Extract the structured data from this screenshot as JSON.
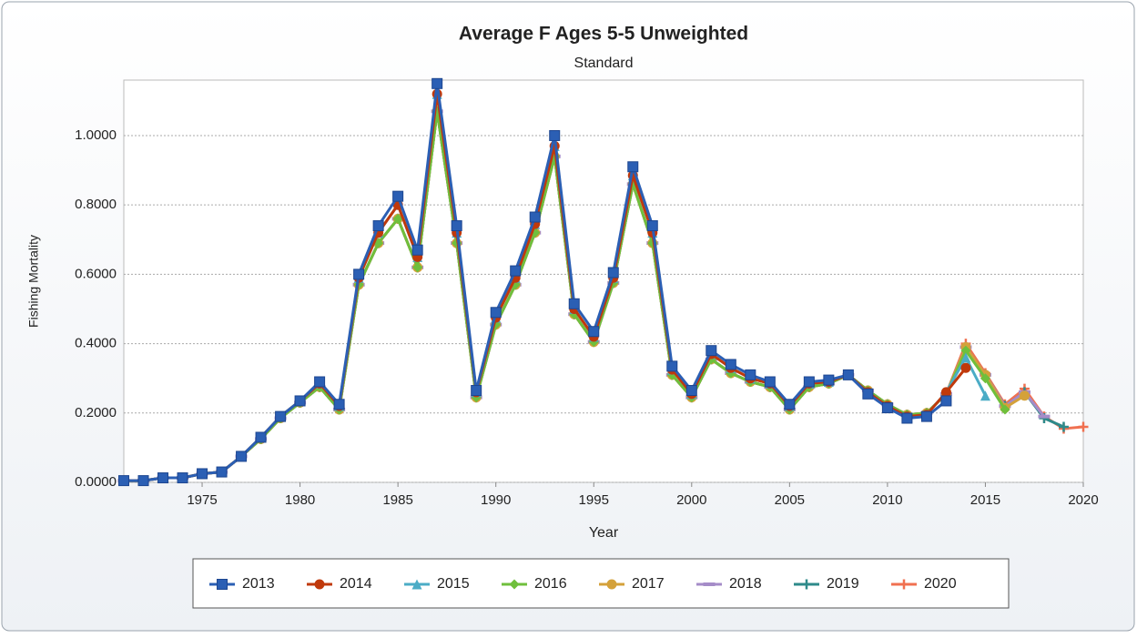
{
  "chart_data": {
    "type": "line",
    "title": "Average F Ages 5-5 Unweighted",
    "subtitle": "Standard",
    "x_label": "Year",
    "y_label": "Fishing Mortality",
    "x": [
      1971,
      1972,
      1973,
      1974,
      1975,
      1976,
      1977,
      1978,
      1979,
      1980,
      1981,
      1982,
      1983,
      1984,
      1985,
      1986,
      1987,
      1988,
      1989,
      1990,
      1991,
      1992,
      1993,
      1994,
      1995,
      1996,
      1997,
      1998,
      1999,
      2000,
      2001,
      2002,
      2003,
      2004,
      2005,
      2006,
      2007,
      2008,
      2009,
      2010,
      2011,
      2012,
      2013,
      2014,
      2015,
      2016,
      2017,
      2018,
      2019,
      2020
    ],
    "xlim": [
      1971,
      2020
    ],
    "xticks": [
      1975,
      1980,
      1985,
      1990,
      1995,
      2000,
      2005,
      2010,
      2015,
      2020
    ],
    "ylim": [
      0,
      1.16
    ],
    "yticks": [
      {
        "value": 0,
        "label": "0.0000"
      },
      {
        "value": 0.2,
        "label": "0.2000"
      },
      {
        "value": 0.4,
        "label": "0.4000"
      },
      {
        "value": 0.6,
        "label": "0.6000"
      },
      {
        "value": 0.8,
        "label": "0.8000"
      },
      {
        "value": 1.0,
        "label": "1.0000"
      }
    ],
    "grid": true,
    "legend": "bottom",
    "series": [
      {
        "name": "2013",
        "color": "#2b5fb4",
        "marker": "square",
        "values": [
          0.005,
          0.005,
          0.013,
          0.013,
          0.025,
          0.03,
          0.075,
          0.13,
          0.19,
          0.235,
          0.29,
          0.225,
          0.6,
          0.74,
          0.825,
          0.67,
          1.15,
          0.74,
          0.265,
          0.49,
          0.61,
          0.765,
          1.0,
          0.515,
          0.435,
          0.605,
          0.91,
          0.74,
          0.335,
          0.265,
          0.38,
          0.34,
          0.31,
          0.29,
          0.225,
          0.29,
          0.295,
          0.31,
          0.255,
          0.215,
          0.185,
          0.19,
          0.235,
          null,
          null,
          null,
          null,
          null,
          null,
          null
        ]
      },
      {
        "name": "2014",
        "color": "#c0390b",
        "marker": "circle",
        "values": [
          0.005,
          0.005,
          0.013,
          0.013,
          0.025,
          0.03,
          0.075,
          0.13,
          0.19,
          0.235,
          0.285,
          0.22,
          0.59,
          0.72,
          0.8,
          0.65,
          1.12,
          0.72,
          0.26,
          0.475,
          0.59,
          0.745,
          0.97,
          0.5,
          0.42,
          0.59,
          0.885,
          0.72,
          0.325,
          0.255,
          0.37,
          0.33,
          0.3,
          0.285,
          0.22,
          0.285,
          0.29,
          0.31,
          0.26,
          0.22,
          0.19,
          0.195,
          0.26,
          0.33,
          null,
          null,
          null,
          null,
          null,
          null
        ]
      },
      {
        "name": "2015",
        "color": "#4bacc6",
        "marker": "triangle",
        "values": [
          0.005,
          0.005,
          0.013,
          0.013,
          0.025,
          0.03,
          0.075,
          0.13,
          0.19,
          0.235,
          0.285,
          0.22,
          0.59,
          0.72,
          0.8,
          0.65,
          1.12,
          0.72,
          0.26,
          0.475,
          0.59,
          0.745,
          0.97,
          0.5,
          0.42,
          0.59,
          0.885,
          0.72,
          0.325,
          0.255,
          0.37,
          0.33,
          0.3,
          0.285,
          0.22,
          0.285,
          0.29,
          0.31,
          0.26,
          0.22,
          0.19,
          0.195,
          0.26,
          0.36,
          0.25,
          null,
          null,
          null,
          null,
          null
        ]
      },
      {
        "name": "2016",
        "color": "#6fbf3c",
        "marker": "diamond",
        "values": [
          0.005,
          0.005,
          0.013,
          0.013,
          0.025,
          0.03,
          0.075,
          0.125,
          0.185,
          0.23,
          0.275,
          0.21,
          0.57,
          0.69,
          0.76,
          0.62,
          1.07,
          0.69,
          0.245,
          0.455,
          0.57,
          0.72,
          0.94,
          0.485,
          0.405,
          0.575,
          0.86,
          0.69,
          0.31,
          0.245,
          0.355,
          0.315,
          0.29,
          0.275,
          0.21,
          0.275,
          0.285,
          0.31,
          0.265,
          0.225,
          0.195,
          0.2,
          0.255,
          0.38,
          0.3,
          0.21,
          null,
          null,
          null,
          null
        ]
      },
      {
        "name": "2017",
        "color": "#d4a13a",
        "marker": "circle",
        "values": [
          0.005,
          0.005,
          0.013,
          0.013,
          0.025,
          0.03,
          0.075,
          0.125,
          0.185,
          0.23,
          0.275,
          0.21,
          0.57,
          0.69,
          0.76,
          0.62,
          1.07,
          0.69,
          0.245,
          0.455,
          0.57,
          0.72,
          0.94,
          0.485,
          0.405,
          0.575,
          0.86,
          0.69,
          0.31,
          0.245,
          0.355,
          0.315,
          0.29,
          0.275,
          0.21,
          0.275,
          0.285,
          0.31,
          0.265,
          0.225,
          0.195,
          0.2,
          0.255,
          0.39,
          0.31,
          0.215,
          0.25,
          null,
          null,
          null
        ]
      },
      {
        "name": "2018",
        "color": "#a58cc8",
        "marker": "dash",
        "values": [
          0.005,
          0.005,
          0.013,
          0.013,
          0.025,
          0.03,
          0.075,
          0.125,
          0.185,
          0.23,
          0.275,
          0.21,
          0.57,
          0.69,
          0.76,
          0.62,
          1.07,
          0.69,
          0.245,
          0.455,
          0.57,
          0.72,
          0.94,
          0.485,
          0.405,
          0.575,
          0.86,
          0.69,
          0.31,
          0.245,
          0.355,
          0.315,
          0.29,
          0.275,
          0.21,
          0.275,
          0.285,
          0.31,
          0.265,
          0.225,
          0.195,
          0.2,
          0.255,
          0.39,
          0.31,
          0.22,
          0.26,
          0.19,
          null,
          null
        ]
      },
      {
        "name": "2019",
        "color": "#2e8a8a",
        "marker": "plus",
        "values": [
          0.005,
          0.005,
          0.013,
          0.013,
          0.025,
          0.03,
          0.075,
          0.125,
          0.185,
          0.23,
          0.275,
          0.21,
          0.57,
          0.69,
          0.76,
          0.62,
          1.07,
          0.69,
          0.245,
          0.455,
          0.57,
          0.72,
          0.94,
          0.485,
          0.405,
          0.575,
          0.86,
          0.69,
          0.31,
          0.245,
          0.355,
          0.315,
          0.29,
          0.275,
          0.21,
          0.275,
          0.285,
          0.31,
          0.265,
          0.225,
          0.195,
          0.2,
          0.255,
          0.39,
          0.31,
          0.22,
          0.26,
          0.185,
          0.16,
          null
        ]
      },
      {
        "name": "2020",
        "color": "#f07050",
        "marker": "plus",
        "values": [
          0.005,
          0.005,
          0.013,
          0.013,
          0.025,
          0.03,
          0.075,
          0.125,
          0.185,
          0.23,
          0.275,
          0.21,
          0.57,
          0.69,
          0.76,
          0.62,
          1.07,
          0.69,
          0.245,
          0.455,
          0.57,
          0.72,
          0.94,
          0.485,
          0.405,
          0.575,
          0.86,
          0.69,
          0.31,
          0.245,
          0.355,
          0.315,
          0.29,
          0.275,
          0.21,
          0.275,
          0.285,
          0.31,
          0.265,
          0.225,
          0.195,
          0.2,
          0.255,
          0.4,
          0.315,
          0.225,
          0.27,
          0.19,
          0.155,
          0.16
        ]
      }
    ]
  }
}
